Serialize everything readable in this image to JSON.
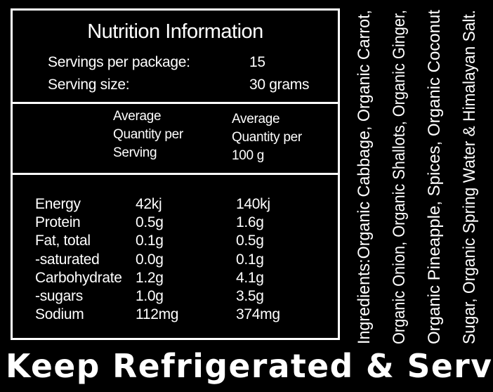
{
  "nutrition": {
    "title": "Nutrition Information",
    "servings_label": "Servings per package:",
    "servings_value": "15",
    "size_label": "Serving size:",
    "size_value": "30 grams",
    "col_serving": [
      "Average",
      "Quantity per",
      "Serving"
    ],
    "col_100g": [
      "Average",
      "Quantity per",
      "100 g"
    ],
    "rows": [
      {
        "name": "Energy",
        "serving": "42kj",
        "per100": "140kj"
      },
      {
        "name": "Protein",
        "serving": "0.5g",
        "per100": "1.6g"
      },
      {
        "name": "Fat, total",
        "serving": "0.1g",
        "per100": "0.5g"
      },
      {
        "name": "-saturated",
        "serving": "0.0g",
        "per100": "0.1g"
      },
      {
        "name": "Carbohydrate",
        "serving": "1.2g",
        "per100": "4.1g"
      },
      {
        "name": "-sugars",
        "serving": "1.0g",
        "per100": "3.5g"
      },
      {
        "name": "Sodium",
        "serving": "112mg",
        "per100": "374mg"
      }
    ]
  },
  "ingredients": {
    "lines": [
      "Ingredients:Organic Cabbage, Organic Carrot,",
      "Organic Onion, Organic Shallots, Organic Ginger,",
      "Organic Pineapple, Spices, Organic Coconut",
      "Sugar, Organic Spring Water & Himalayan Salt."
    ]
  },
  "footer": {
    "headline": "Keep Refrigerated & Serve Cold"
  }
}
